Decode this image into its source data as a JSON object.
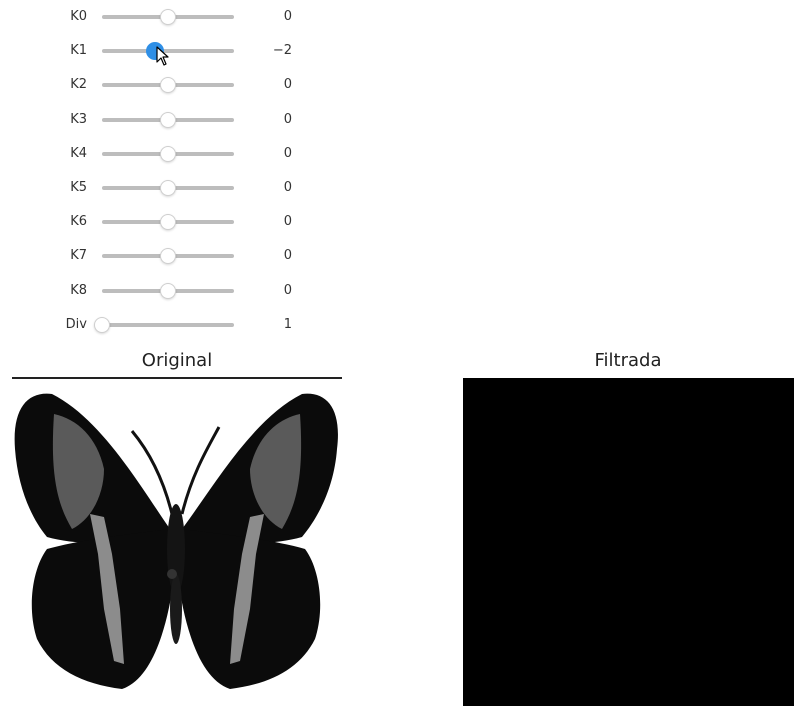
{
  "sliders": [
    {
      "label": "K0",
      "value": "0",
      "pos": 0.5,
      "active": false
    },
    {
      "label": "K1",
      "value": "−2",
      "pos": 0.4,
      "active": true
    },
    {
      "label": "K2",
      "value": "0",
      "pos": 0.5,
      "active": false
    },
    {
      "label": "K3",
      "value": "0",
      "pos": 0.5,
      "active": false
    },
    {
      "label": "K4",
      "value": "0",
      "pos": 0.5,
      "active": false
    },
    {
      "label": "K5",
      "value": "0",
      "pos": 0.5,
      "active": false
    },
    {
      "label": "K6",
      "value": "0",
      "pos": 0.5,
      "active": false
    },
    {
      "label": "K7",
      "value": "0",
      "pos": 0.5,
      "active": false
    },
    {
      "label": "K8",
      "value": "0",
      "pos": 0.5,
      "active": false
    },
    {
      "label": "Div",
      "value": "1",
      "pos": 0.0,
      "active": false
    }
  ],
  "panels": {
    "original_title": "Original",
    "filtered_title": "Filtrada"
  },
  "colors": {
    "active_thumb": "#2f8fe6",
    "filtered_background": "#000000"
  },
  "icons": {
    "cursor": "mouse-pointer-icon",
    "image": "butterfly-image"
  }
}
